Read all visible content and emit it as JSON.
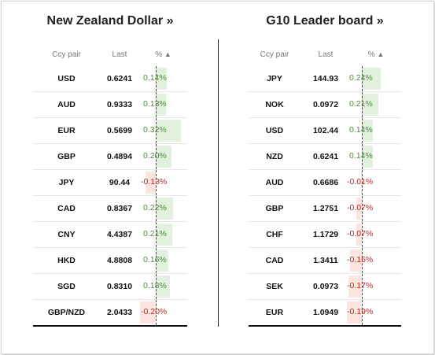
{
  "left": {
    "title": "New Zealand Dollar »",
    "headers": {
      "ccy": "Ccy pair",
      "last": "Last",
      "pct": "%"
    },
    "sort_icon": "triangle-up",
    "rows": [
      {
        "ccy": "USD",
        "last": "0.6241",
        "pct": "0.14%",
        "value": 0.14
      },
      {
        "ccy": "AUD",
        "last": "0.9333",
        "pct": "0.13%",
        "value": 0.13
      },
      {
        "ccy": "EUR",
        "last": "0.5699",
        "pct": "0.32%",
        "value": 0.32
      },
      {
        "ccy": "GBP",
        "last": "0.4894",
        "pct": "0.20%",
        "value": 0.2
      },
      {
        "ccy": "JPY",
        "last": "90.44",
        "pct": "-0.13%",
        "value": -0.13
      },
      {
        "ccy": "CAD",
        "last": "0.8367",
        "pct": "0.22%",
        "value": 0.22
      },
      {
        "ccy": "CNY",
        "last": "4.4387",
        "pct": "0.21%",
        "value": 0.21
      },
      {
        "ccy": "HKD",
        "last": "4.8808",
        "pct": "0.16%",
        "value": 0.16
      },
      {
        "ccy": "SGD",
        "last": "0.8310",
        "pct": "0.18%",
        "value": 0.18
      },
      {
        "ccy": "GBP/NZD",
        "last": "2.0433",
        "pct": "-0.20%",
        "value": -0.2
      }
    ]
  },
  "right": {
    "title": "G10 Leader board »",
    "headers": {
      "ccy": "Ccy pair",
      "last": "Last",
      "pct": "%"
    },
    "sort_icon": "triangle-up",
    "rows": [
      {
        "ccy": "JPY",
        "last": "144.93",
        "pct": "0.24%",
        "value": 0.24
      },
      {
        "ccy": "NOK",
        "last": "0.0972",
        "pct": "0.21%",
        "value": 0.21
      },
      {
        "ccy": "USD",
        "last": "102.44",
        "pct": "0.14%",
        "value": 0.14
      },
      {
        "ccy": "NZD",
        "last": "0.6241",
        "pct": "0.14%",
        "value": 0.14
      },
      {
        "ccy": "AUD",
        "last": "0.6686",
        "pct": "-0.01%",
        "value": -0.01
      },
      {
        "ccy": "GBP",
        "last": "1.2751",
        "pct": "-0.07%",
        "value": -0.07
      },
      {
        "ccy": "CHF",
        "last": "1.1729",
        "pct": "-0.07%",
        "value": -0.07
      },
      {
        "ccy": "CAD",
        "last": "1.3411",
        "pct": "-0.15%",
        "value": -0.15
      },
      {
        "ccy": "SEK",
        "last": "0.0973",
        "pct": "-0.17%",
        "value": -0.17
      },
      {
        "ccy": "EUR",
        "last": "1.0949",
        "pct": "-0.19%",
        "value": -0.19
      }
    ]
  },
  "colors": {
    "positive_text": "#4d8b3c",
    "negative_text": "#c32222",
    "positive_bar": "#e2f1de",
    "negative_bar": "#fbe5de"
  }
}
